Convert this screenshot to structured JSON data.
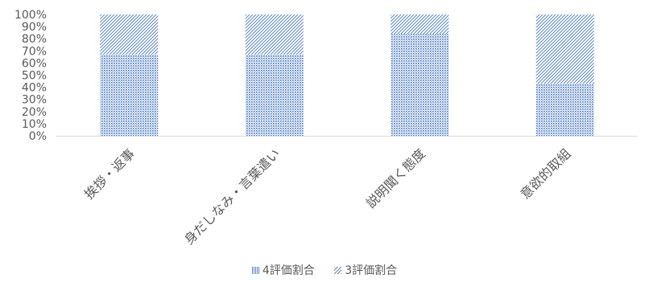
{
  "chart_data": {
    "type": "bar",
    "stacked": true,
    "percent_stacked": true,
    "categories": [
      "挨拶・返事",
      "身だしなみ・言葉遣い",
      "説明聞く態度",
      "意欲的取組"
    ],
    "series": [
      {
        "name": "4評価割合",
        "values": [
          67,
          67,
          84,
          43
        ],
        "color": "#4472c4",
        "pattern": "dotted"
      },
      {
        "name": "3評価割合",
        "values": [
          33,
          33,
          16,
          57
        ],
        "color": "#4472c4",
        "pattern": "diagonal-hatch"
      }
    ],
    "y_ticks": [
      "0%",
      "10%",
      "20%",
      "30%",
      "40%",
      "50%",
      "60%",
      "70%",
      "80%",
      "90%",
      "100%"
    ],
    "ylim": [
      0,
      100
    ],
    "title": "",
    "xlabel": "",
    "ylabel": "",
    "legend_position": "bottom",
    "grid": false
  }
}
